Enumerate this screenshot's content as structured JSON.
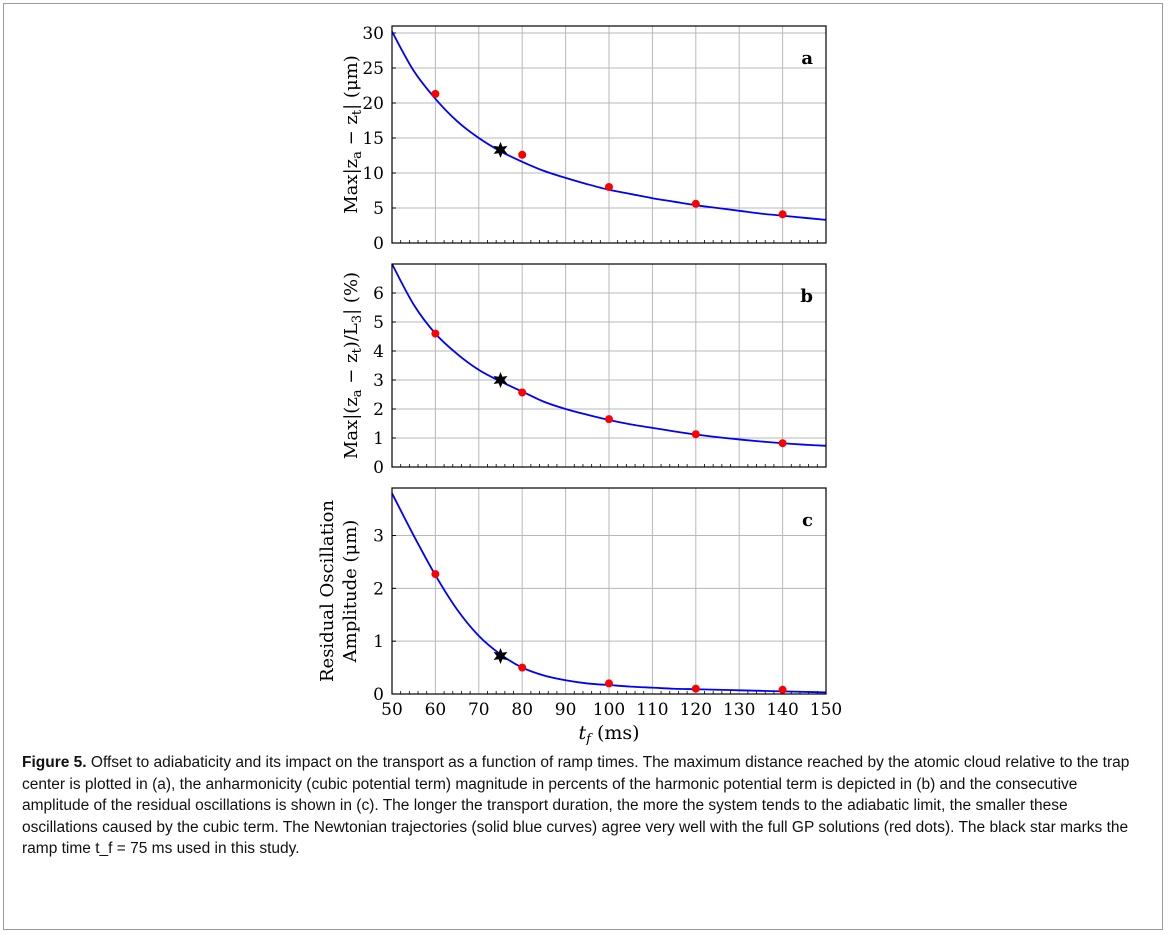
{
  "chart_data": [
    {
      "panel": "a",
      "type": "line",
      "ylabel": "Max|z_a − z_t| (μm)",
      "ylabel_parts": [
        "Max|z",
        "a",
        " − z",
        "t",
        "| (μm)"
      ],
      "xlim": [
        50,
        150
      ],
      "ylim": [
        0,
        31
      ],
      "yticks": [
        0,
        5,
        10,
        15,
        20,
        25,
        30
      ],
      "grid": true,
      "series": [
        {
          "kind": "curve",
          "color": "#0000ff",
          "x": [
            50,
            55,
            60,
            65,
            70,
            75,
            80,
            85,
            90,
            95,
            100,
            105,
            110,
            115,
            120,
            125,
            130,
            135,
            140,
            145,
            150
          ],
          "y": [
            30.2,
            24.6,
            20.6,
            17.4,
            15.0,
            13.1,
            11.6,
            10.3,
            9.3,
            8.4,
            7.6,
            7.0,
            6.4,
            5.9,
            5.4,
            5.0,
            4.6,
            4.2,
            3.9,
            3.6,
            3.3
          ]
        },
        {
          "kind": "points",
          "color": "#ff0000",
          "x": [
            60,
            80,
            100,
            120,
            140
          ],
          "y": [
            21.3,
            12.6,
            8.0,
            5.6,
            4.1
          ]
        },
        {
          "kind": "star",
          "color": "#000000",
          "x": [
            75
          ],
          "y": [
            13.3
          ]
        }
      ]
    },
    {
      "panel": "b",
      "type": "line",
      "ylabel": "Max|(z_a − z_t)/L_3| (%)",
      "ylabel_parts": [
        "Max|(z",
        "a",
        " − z",
        "t",
        ")/L",
        "3",
        "| (%)"
      ],
      "xlim": [
        50,
        150
      ],
      "ylim": [
        0,
        7
      ],
      "yticks": [
        0,
        1,
        2,
        3,
        4,
        5,
        6
      ],
      "grid": true,
      "series": [
        {
          "kind": "curve",
          "color": "#0000ff",
          "x": [
            50,
            55,
            60,
            65,
            70,
            75,
            80,
            85,
            90,
            95,
            100,
            105,
            110,
            115,
            120,
            125,
            130,
            135,
            140,
            145,
            150
          ],
          "y": [
            7.0,
            5.6,
            4.6,
            3.9,
            3.35,
            2.95,
            2.6,
            2.25,
            2.0,
            1.8,
            1.62,
            1.47,
            1.35,
            1.23,
            1.12,
            1.03,
            0.95,
            0.88,
            0.82,
            0.77,
            0.73
          ]
        },
        {
          "kind": "points",
          "color": "#ff0000",
          "x": [
            60,
            80,
            100,
            120,
            140
          ],
          "y": [
            4.6,
            2.57,
            1.65,
            1.13,
            0.82
          ]
        },
        {
          "kind": "star",
          "color": "#000000",
          "x": [
            75
          ],
          "y": [
            3.0
          ]
        }
      ]
    },
    {
      "panel": "c",
      "type": "line",
      "ylabel_line1": "Residual Oscillation",
      "ylabel_line2": "Amplitude (μm)",
      "xlabel": "t_f (ms)",
      "xlim": [
        50,
        150
      ],
      "ylim": [
        0,
        3.9
      ],
      "yticks": [
        0,
        1,
        2,
        3
      ],
      "xticks": [
        50,
        60,
        70,
        80,
        90,
        100,
        110,
        120,
        130,
        140,
        150
      ],
      "grid": true,
      "series": [
        {
          "kind": "curve",
          "color": "#0000ff",
          "x": [
            50,
            55,
            60,
            65,
            70,
            75,
            80,
            85,
            90,
            95,
            100,
            105,
            110,
            115,
            120,
            125,
            130,
            135,
            140,
            145,
            150
          ],
          "y": [
            3.8,
            3.0,
            2.25,
            1.6,
            1.1,
            0.75,
            0.5,
            0.35,
            0.26,
            0.2,
            0.17,
            0.14,
            0.12,
            0.1,
            0.09,
            0.08,
            0.07,
            0.06,
            0.05,
            0.04,
            0.03
          ]
        },
        {
          "kind": "points",
          "color": "#ff0000",
          "x": [
            60,
            80,
            100,
            120,
            140
          ],
          "y": [
            2.27,
            0.5,
            0.2,
            0.1,
            0.08
          ]
        },
        {
          "kind": "star",
          "color": "#000000",
          "x": [
            75
          ],
          "y": [
            0.72
          ]
        }
      ]
    }
  ],
  "xlabel": {
    "var": "t",
    "sub": "f",
    "unit": " (ms)"
  },
  "caption": {
    "label": "Figure 5.",
    "text": " Offset to adiabaticity and its impact on the transport as a function of ramp times. The maximum distance reached by the atomic cloud relative to the trap center is plotted in (a), the anharmonicity (cubic potential term) magnitude in percents of the harmonic potential term is depicted in (b) and the consecutive amplitude of the residual oscillations is shown in (c). The longer the transport duration, the more the system tends to the adiabatic limit, the smaller these oscillations caused by the cubic term. The Newtonian trajectories (solid blue curves) agree very well with the full GP solutions (red dots). The black star marks the ramp time t_f = 75 ms used in this study."
  }
}
